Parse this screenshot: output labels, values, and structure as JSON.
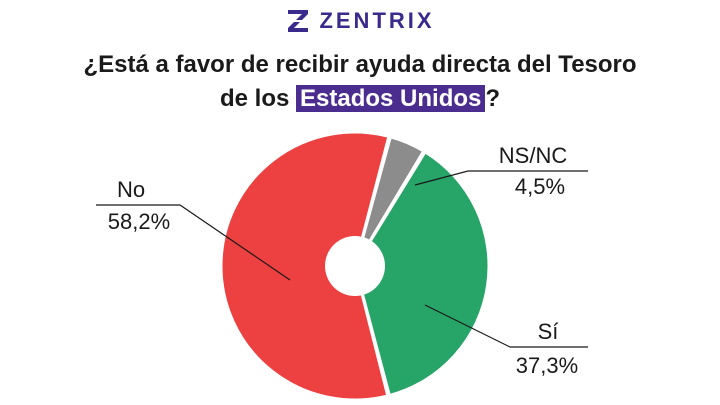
{
  "brand": {
    "name": "ZENTRIX",
    "color": "#3a2a8c"
  },
  "title": {
    "line1": "¿Está a favor de recibir ayuda directa del Tesoro",
    "line2_pre": "de los ",
    "line2_highlight": "Estados Unidos",
    "line2_post": "?"
  },
  "chart_data": {
    "type": "pie",
    "donut": true,
    "title": "¿Está a favor de recibir ayuda directa del Tesoro de los Estados Unidos?",
    "slices": [
      {
        "label": "NS/NC",
        "value": 4.5,
        "display": "4,5%",
        "color": "#8c8c8c"
      },
      {
        "label": "Sí",
        "value": 37.3,
        "display": "37,3%",
        "color": "#27a468"
      },
      {
        "label": "No",
        "value": 58.2,
        "display": "58,2%",
        "color": "#ed4040"
      }
    ]
  }
}
